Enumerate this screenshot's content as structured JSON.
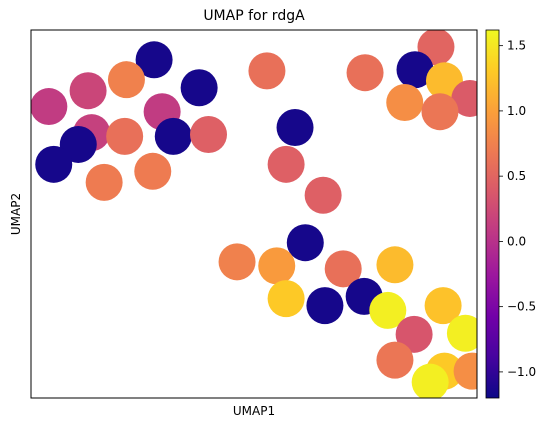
{
  "chart_data": {
    "type": "scatter",
    "title": "UMAP for rdgA",
    "xlabel": "UMAP1",
    "ylabel": "UMAP2",
    "grid": false,
    "xlim": [
      0,
      100
    ],
    "ylim": [
      0,
      100
    ],
    "points": [
      {
        "x": 27.6,
        "y": 91.9,
        "v": -1.15
      },
      {
        "x": 90.8,
        "y": 95.4,
        "v": 0.5
      },
      {
        "x": 4.0,
        "y": 79.2,
        "v": 0.1
      },
      {
        "x": 12.8,
        "y": 83.5,
        "v": 0.2
      },
      {
        "x": 21.4,
        "y": 86.5,
        "v": 0.75
      },
      {
        "x": 37.7,
        "y": 84.3,
        "v": -1.15
      },
      {
        "x": 52.9,
        "y": 88.9,
        "v": 0.6
      },
      {
        "x": 74.9,
        "y": 88.4,
        "v": 0.6
      },
      {
        "x": 86.1,
        "y": 89.2,
        "v": -1.15
      },
      {
        "x": 92.7,
        "y": 86.2,
        "v": 1.2
      },
      {
        "x": 98.4,
        "y": 81.4,
        "v": 0.4
      },
      {
        "x": 83.8,
        "y": 80.3,
        "v": 0.85
      },
      {
        "x": 91.7,
        "y": 77.8,
        "v": 0.65
      },
      {
        "x": 29.4,
        "y": 77.8,
        "v": 0.1
      },
      {
        "x": 13.6,
        "y": 72.1,
        "v": 0.15
      },
      {
        "x": 10.6,
        "y": 68.9,
        "v": -1.15
      },
      {
        "x": 21.0,
        "y": 71.1,
        "v": 0.6
      },
      {
        "x": 31.9,
        "y": 71.1,
        "v": -1.15
      },
      {
        "x": 39.8,
        "y": 71.6,
        "v": 0.45
      },
      {
        "x": 59.2,
        "y": 73.5,
        "v": -1.15
      },
      {
        "x": 5.1,
        "y": 63.5,
        "v": -1.15
      },
      {
        "x": 16.4,
        "y": 58.6,
        "v": 0.7
      },
      {
        "x": 27.3,
        "y": 61.6,
        "v": 0.7
      },
      {
        "x": 57.2,
        "y": 63.5,
        "v": 0.45
      },
      {
        "x": 65.5,
        "y": 55.1,
        "v": 0.45
      },
      {
        "x": 61.5,
        "y": 42.2,
        "v": -1.15
      },
      {
        "x": 46.2,
        "y": 37.0,
        "v": 0.75
      },
      {
        "x": 55.1,
        "y": 35.9,
        "v": 0.95
      },
      {
        "x": 70.0,
        "y": 35.1,
        "v": 0.6
      },
      {
        "x": 81.6,
        "y": 36.2,
        "v": 1.2
      },
      {
        "x": 57.2,
        "y": 27.0,
        "v": 1.3
      },
      {
        "x": 65.9,
        "y": 25.1,
        "v": -1.15
      },
      {
        "x": 74.7,
        "y": 27.6,
        "v": -1.15
      },
      {
        "x": 80.0,
        "y": 23.8,
        "v": 1.55
      },
      {
        "x": 92.4,
        "y": 25.1,
        "v": 1.25
      },
      {
        "x": 85.9,
        "y": 17.3,
        "v": 0.35
      },
      {
        "x": 97.4,
        "y": 17.6,
        "v": 1.55
      },
      {
        "x": 81.6,
        "y": 10.3,
        "v": 0.65
      },
      {
        "x": 92.7,
        "y": 7.3,
        "v": 1.3
      },
      {
        "x": 98.9,
        "y": 7.3,
        "v": 0.85
      },
      {
        "x": 89.5,
        "y": 4.3,
        "v": 1.55
      }
    ],
    "colorbar": {
      "min": -1.2,
      "max": 1.62,
      "ticks": [
        -1.0,
        -0.5,
        0.0,
        0.5,
        1.0,
        1.5
      ],
      "tick_labels": [
        "−1.0",
        "−0.5",
        "0.0",
        "0.5",
        "1.0",
        "1.5"
      ],
      "colormap": "plasma"
    }
  },
  "colormap_stops": [
    "#0d0887",
    "#46039f",
    "#7201a8",
    "#9c179e",
    "#bd3786",
    "#d8576b",
    "#ed7953",
    "#fb9f3a",
    "#fdca26",
    "#f0f921"
  ]
}
